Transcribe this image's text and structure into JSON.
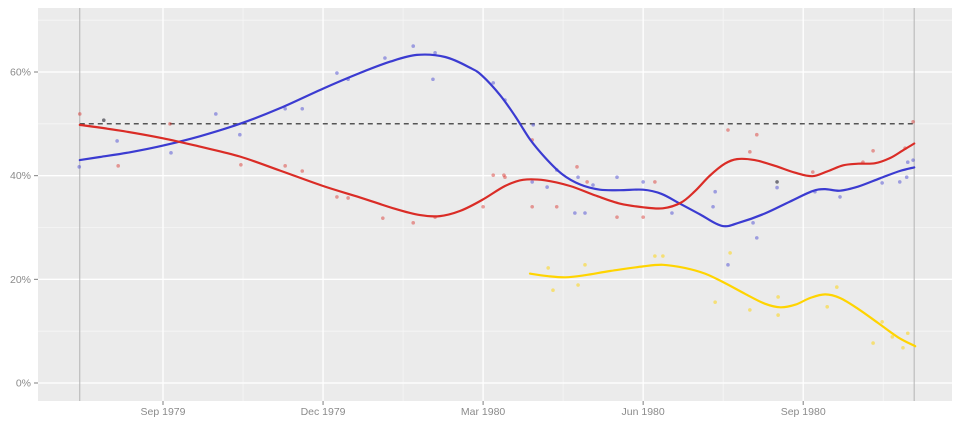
{
  "panel": {
    "outer_bg": "#ffffff",
    "bg": "#ebebeb",
    "grid_major_color": "#ffffff",
    "grid_minor_color": "#f6f6f6",
    "axis_text_color": "#8b8b8b",
    "tick_mark_color": "#7f7f7f",
    "boundary_line_color": "#b3b3b3"
  },
  "chart_data": {
    "type": "scatter",
    "title": "",
    "xlabel": "",
    "ylabel": "",
    "legend": "none",
    "grid": "on",
    "x_axis": {
      "tick_labels": [
        "Sep 1979",
        "Dec 1979",
        "Mar 1980",
        "Jun 1980",
        "Sep 1980"
      ],
      "tick_months": [
        0,
        3,
        6,
        9,
        12
      ],
      "minor_months": [
        1.5,
        4.5,
        7.5,
        10.5,
        13.5
      ],
      "unit": "months since Sep 1979"
    },
    "y_axis": {
      "tick_labels": [
        "0%",
        "20%",
        "40%",
        "60%"
      ],
      "tick_values": [
        0,
        20,
        40,
        60
      ],
      "minor_values": [
        10,
        30,
        50,
        70
      ],
      "unit": "percent"
    },
    "reference_line": {
      "value_pct": 50,
      "style": "dashed",
      "color": "#222222"
    },
    "boundary_lines_months": [
      -1.56,
      14.08
    ],
    "series": [
      {
        "name": "blue",
        "color": "#3b3bd1",
        "point_opacity": 0.45,
        "line": [
          [
            -1.56,
            43.0
          ],
          [
            -1.18,
            43.6
          ],
          [
            -0.62,
            44.5
          ],
          [
            0,
            45.8
          ],
          [
            0.69,
            47.6
          ],
          [
            1.44,
            50.0
          ],
          [
            2.19,
            53.0
          ],
          [
            3.0,
            56.8
          ],
          [
            3.69,
            59.8
          ],
          [
            4.26,
            62.0
          ],
          [
            4.76,
            63.3
          ],
          [
            5.29,
            62.9
          ],
          [
            5.76,
            60.8
          ],
          [
            5.98,
            59.3
          ],
          [
            6.32,
            55.5
          ],
          [
            6.6,
            51.5
          ],
          [
            6.88,
            47.0
          ],
          [
            7.16,
            43.5
          ],
          [
            7.48,
            40.3
          ],
          [
            7.82,
            38.3
          ],
          [
            8.19,
            37.3
          ],
          [
            8.57,
            37.2
          ],
          [
            9.0,
            37.3
          ],
          [
            9.34,
            36.5
          ],
          [
            9.69,
            34.6
          ],
          [
            10.07,
            32.5
          ],
          [
            10.48,
            30.3
          ],
          [
            10.82,
            31.0
          ],
          [
            11.28,
            32.7
          ],
          [
            11.75,
            35.0
          ],
          [
            12.17,
            37.0
          ],
          [
            12.41,
            37.4
          ],
          [
            12.69,
            37.1
          ],
          [
            13.03,
            37.9
          ],
          [
            13.44,
            39.5
          ],
          [
            13.81,
            40.9
          ],
          [
            14.08,
            41.6
          ]
        ],
        "points": [
          [
            -1.57,
            41.7
          ],
          [
            -0.86,
            46.7
          ],
          [
            0.15,
            44.4
          ],
          [
            0.99,
            51.9
          ],
          [
            1.44,
            47.9
          ],
          [
            2.29,
            52.9
          ],
          [
            2.61,
            52.9
          ],
          [
            3.26,
            59.8
          ],
          [
            3.47,
            58.6
          ],
          [
            4.16,
            62.7
          ],
          [
            4.69,
            65.0
          ],
          [
            5.1,
            63.7
          ],
          [
            5.06,
            58.6
          ],
          [
            6.19,
            57.9
          ],
          [
            6.41,
            54.6
          ],
          [
            6.94,
            49.8
          ],
          [
            6.92,
            38.8
          ],
          [
            7.2,
            37.8
          ],
          [
            7.38,
            41.1
          ],
          [
            7.72,
            32.8
          ],
          [
            7.78,
            39.7
          ],
          [
            7.91,
            32.8
          ],
          [
            8.06,
            38.2
          ],
          [
            8.51,
            39.7
          ],
          [
            9.0,
            38.8
          ],
          [
            9.54,
            32.8
          ],
          [
            10.31,
            34.0
          ],
          [
            10.35,
            36.9
          ],
          [
            10.59,
            22.8
          ],
          [
            11.06,
            30.9
          ],
          [
            11.13,
            28.0
          ],
          [
            11.51,
            37.7
          ],
          [
            12.22,
            36.9
          ],
          [
            12.69,
            35.9
          ],
          [
            13.48,
            38.6
          ],
          [
            13.81,
            38.8
          ],
          [
            13.94,
            39.7
          ],
          [
            13.96,
            42.6
          ],
          [
            14.06,
            43.0
          ]
        ]
      },
      {
        "name": "red",
        "color": "#da2c26",
        "point_opacity": 0.45,
        "line": [
          [
            -1.56,
            49.8
          ],
          [
            -0.81,
            48.7
          ],
          [
            0,
            47.2
          ],
          [
            0.69,
            45.6
          ],
          [
            1.44,
            43.7
          ],
          [
            2.19,
            41.0
          ],
          [
            3.0,
            38.0
          ],
          [
            3.69,
            35.8
          ],
          [
            4.35,
            33.6
          ],
          [
            4.82,
            32.4
          ],
          [
            5.19,
            32.2
          ],
          [
            5.57,
            33.2
          ],
          [
            5.98,
            35.3
          ],
          [
            6.41,
            38.0
          ],
          [
            6.75,
            39.2
          ],
          [
            7.16,
            39.1
          ],
          [
            7.63,
            38.0
          ],
          [
            8.1,
            36.2
          ],
          [
            8.57,
            34.6
          ],
          [
            9.0,
            33.9
          ],
          [
            9.37,
            33.7
          ],
          [
            9.71,
            34.8
          ],
          [
            9.97,
            37.0
          ],
          [
            10.25,
            40.0
          ],
          [
            10.53,
            42.3
          ],
          [
            10.76,
            43.2
          ],
          [
            11.09,
            43.0
          ],
          [
            11.47,
            41.9
          ],
          [
            11.84,
            40.6
          ],
          [
            12.17,
            39.9
          ],
          [
            12.47,
            40.9
          ],
          [
            12.75,
            42.0
          ],
          [
            13.03,
            42.3
          ],
          [
            13.35,
            42.4
          ],
          [
            13.63,
            43.4
          ],
          [
            13.87,
            44.9
          ],
          [
            14.08,
            46.2
          ]
        ],
        "points": [
          [
            -1.56,
            51.9
          ],
          [
            -0.84,
            41.9
          ],
          [
            0.13,
            50.0
          ],
          [
            1.46,
            42.1
          ],
          [
            2.29,
            41.9
          ],
          [
            2.61,
            40.9
          ],
          [
            3.26,
            35.9
          ],
          [
            3.47,
            35.7
          ],
          [
            4.12,
            31.8
          ],
          [
            4.69,
            30.9
          ],
          [
            5.1,
            32.0
          ],
          [
            6.0,
            34.0
          ],
          [
            6.19,
            40.1
          ],
          [
            6.39,
            40.1
          ],
          [
            6.41,
            39.7
          ],
          [
            6.92,
            46.9
          ],
          [
            6.92,
            34.0
          ],
          [
            7.38,
            34.0
          ],
          [
            7.76,
            41.7
          ],
          [
            7.95,
            38.8
          ],
          [
            8.51,
            32.0
          ],
          [
            9.0,
            32.0
          ],
          [
            9.22,
            38.8
          ],
          [
            10.59,
            48.8
          ],
          [
            11.0,
            44.6
          ],
          [
            11.13,
            47.9
          ],
          [
            12.18,
            40.7
          ],
          [
            13.12,
            42.6
          ],
          [
            13.31,
            44.8
          ],
          [
            13.91,
            45.3
          ],
          [
            14.06,
            50.4
          ]
        ]
      },
      {
        "name": "yellow",
        "color": "#ffd400",
        "point_opacity": 0.5,
        "line": [
          [
            6.88,
            21.1
          ],
          [
            7.22,
            20.6
          ],
          [
            7.54,
            20.4
          ],
          [
            7.91,
            20.8
          ],
          [
            8.38,
            21.6
          ],
          [
            9.0,
            22.5
          ],
          [
            9.37,
            22.8
          ],
          [
            9.78,
            22.2
          ],
          [
            10.16,
            21.1
          ],
          [
            10.53,
            19.3
          ],
          [
            10.91,
            17.2
          ],
          [
            11.28,
            15.3
          ],
          [
            11.57,
            14.6
          ],
          [
            11.85,
            15.1
          ],
          [
            12.13,
            16.4
          ],
          [
            12.41,
            17.1
          ],
          [
            12.69,
            16.4
          ],
          [
            13.03,
            14.3
          ],
          [
            13.4,
            11.6
          ],
          [
            13.78,
            8.8
          ],
          [
            14.1,
            7.1
          ]
        ],
        "points": [
          [
            7.22,
            22.2
          ],
          [
            7.31,
            17.9
          ],
          [
            7.78,
            18.9
          ],
          [
            7.91,
            22.8
          ],
          [
            9.22,
            24.5
          ],
          [
            9.37,
            24.5
          ],
          [
            10.63,
            25.1
          ],
          [
            10.35,
            15.6
          ],
          [
            11.0,
            14.1
          ],
          [
            11.53,
            16.6
          ],
          [
            11.53,
            13.1
          ],
          [
            12.45,
            14.7
          ],
          [
            12.63,
            18.5
          ],
          [
            13.48,
            11.8
          ],
          [
            13.31,
            7.7
          ],
          [
            13.67,
            8.9
          ],
          [
            13.87,
            6.8
          ],
          [
            13.96,
            9.6
          ]
        ]
      }
    ],
    "extra_points": {
      "name": "dark",
      "color": "#55555e",
      "point_opacity": 0.8,
      "points": [
        [
          -1.11,
          50.7
        ],
        [
          11.51,
          38.8
        ]
      ]
    }
  }
}
